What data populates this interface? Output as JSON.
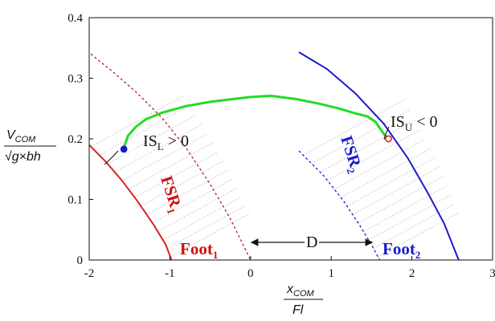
{
  "chart_data": {
    "type": "line",
    "title": "",
    "xlabel": {
      "numerator": "x",
      "numerator_sub": "COM",
      "denominator": "Fl"
    },
    "ylabel": {
      "numerator": "V",
      "numerator_sub": "COM",
      "denominator": "√g×bh"
    },
    "xlim": [
      -2,
      3
    ],
    "ylim": [
      0,
      0.4
    ],
    "xticks": [
      "-2",
      "-1",
      "0",
      "1",
      "2",
      "3"
    ],
    "yticks": [
      "0",
      "0.1",
      "0.2",
      "0.3",
      "0.4"
    ],
    "grid": false,
    "series": [
      {
        "color": "#22dd22",
        "style": "solid",
        "x": [
          -1.57,
          -1.52,
          -1.42,
          -1.3,
          -1.1,
          -0.8,
          -0.5,
          -0.2,
          0.0,
          0.25,
          0.55,
          0.85,
          1.1,
          1.3,
          1.45,
          1.55,
          1.63,
          1.7
        ],
        "y": [
          0.185,
          0.205,
          0.22,
          0.232,
          0.243,
          0.254,
          0.261,
          0.266,
          0.269,
          0.271,
          0.266,
          0.258,
          0.25,
          0.242,
          0.237,
          0.228,
          0.212,
          0.2
        ]
      },
      {
        "color": "#dd2222",
        "style": "solid",
        "name_ref": "foot1_boundary",
        "x": [
          -2.0,
          -1.8,
          -1.6,
          -1.4,
          -1.2,
          -1.05,
          -0.98
        ],
        "y": [
          0.19,
          0.163,
          0.132,
          0.097,
          0.058,
          0.025,
          0.0
        ]
      },
      {
        "color": "#aa2233",
        "style": "dashed",
        "x": [
          -1.98,
          -1.7,
          -1.4,
          -1.1,
          -0.8,
          -0.5,
          -0.25,
          0.0
        ],
        "y": [
          0.34,
          0.31,
          0.275,
          0.235,
          0.185,
          0.125,
          0.068,
          0.0
        ]
      },
      {
        "color": "#1a1acc",
        "style": "solid",
        "x": [
          0.6,
          0.95,
          1.3,
          1.65,
          1.95,
          2.2,
          2.4,
          2.58
        ],
        "y": [
          0.343,
          0.315,
          0.275,
          0.225,
          0.168,
          0.11,
          0.06,
          0.0
        ]
      },
      {
        "color": "#1a1acc",
        "style": "dashed",
        "x": [
          0.6,
          0.9,
          1.15,
          1.35,
          1.5,
          1.6
        ],
        "y": [
          0.18,
          0.14,
          0.098,
          0.058,
          0.025,
          0.0
        ]
      }
    ],
    "points": [
      {
        "x": -1.57,
        "y": 0.183,
        "color": "#1a1acc"
      },
      {
        "x": 1.71,
        "y": 0.2,
        "color": "#dd2222"
      }
    ],
    "annotations": {
      "isl": {
        "base": "IS",
        "sub": "L",
        "rest": " > 0"
      },
      "isu": {
        "base": "IS",
        "sub": "U",
        "rest": " < 0"
      },
      "fsr1": {
        "base": "FSR",
        "sub": "1",
        "color": "#cc1111"
      },
      "fsr2": {
        "base": "FSR",
        "sub": "2",
        "color": "#1a1acc"
      },
      "foot1": {
        "base": "Foot",
        "sub": "1",
        "color": "#cc1111"
      },
      "foot2": {
        "base": "Foot",
        "sub": "2",
        "color": "#1a1acc"
      },
      "distance": "D"
    }
  }
}
